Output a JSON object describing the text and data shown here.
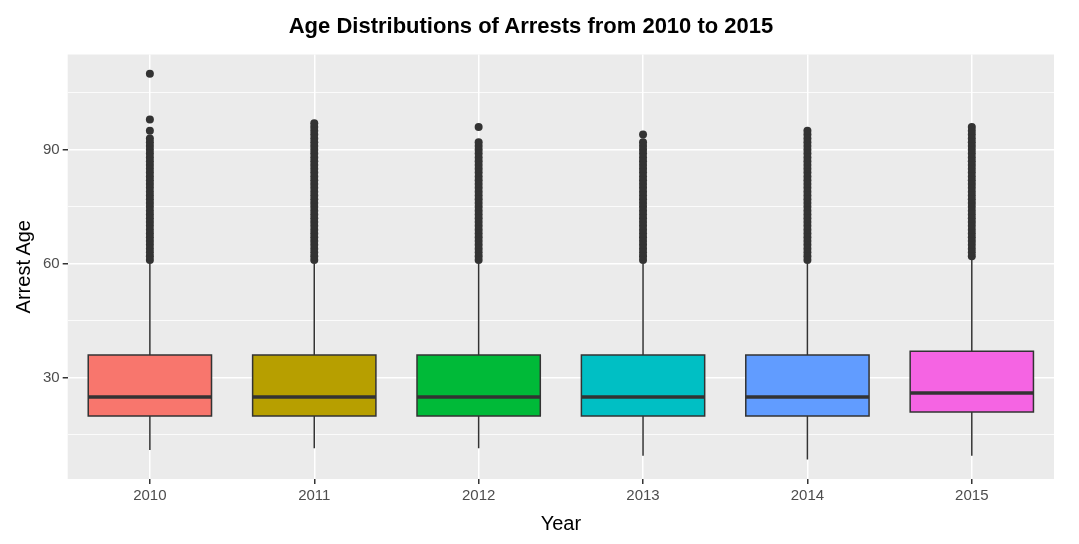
{
  "chart_data": {
    "type": "box",
    "title": "Age Distributions of Arrests from 2010 to 2015",
    "xlabel": "Year",
    "ylabel": "Arrest Age",
    "categories": [
      "2010",
      "2011",
      "2012",
      "2013",
      "2014",
      "2015"
    ],
    "colors": [
      "#f8766d",
      "#b79f00",
      "#00ba38",
      "#00bfc4",
      "#619cff",
      "#f564e3"
    ],
    "boxes": [
      {
        "low": 11,
        "q1": 20,
        "median": 25,
        "q3": 36,
        "high": 60,
        "outliers": [
          61,
          62,
          63,
          64,
          65,
          66,
          67,
          68,
          69,
          70,
          71,
          72,
          73,
          74,
          75,
          76,
          77,
          78,
          79,
          80,
          81,
          82,
          83,
          84,
          85,
          86,
          87,
          88,
          89,
          90,
          91,
          92,
          93,
          95,
          98,
          110
        ]
      },
      {
        "low": 11.5,
        "q1": 20,
        "median": 25,
        "q3": 36,
        "high": 60,
        "outliers": [
          61,
          62,
          63,
          64,
          65,
          66,
          67,
          68,
          69,
          70,
          71,
          72,
          73,
          74,
          75,
          76,
          77,
          78,
          79,
          80,
          81,
          82,
          83,
          84,
          85,
          86,
          87,
          88,
          89,
          90,
          91,
          92,
          93,
          94,
          95,
          96,
          97
        ]
      },
      {
        "low": 11.5,
        "q1": 20,
        "median": 25,
        "q3": 36,
        "high": 60,
        "outliers": [
          61,
          62,
          63,
          64,
          65,
          66,
          67,
          68,
          69,
          70,
          71,
          72,
          73,
          74,
          75,
          76,
          77,
          78,
          79,
          80,
          81,
          82,
          83,
          84,
          85,
          86,
          87,
          88,
          89,
          90,
          91,
          92,
          96
        ]
      },
      {
        "low": 9.5,
        "q1": 20,
        "median": 25,
        "q3": 36,
        "high": 60,
        "outliers": [
          61,
          62,
          63,
          64,
          65,
          66,
          67,
          68,
          69,
          70,
          71,
          72,
          73,
          74,
          75,
          76,
          77,
          78,
          79,
          80,
          81,
          82,
          83,
          84,
          85,
          86,
          87,
          88,
          89,
          90,
          91,
          92,
          94
        ]
      },
      {
        "low": 8.5,
        "q1": 20,
        "median": 25,
        "q3": 36,
        "high": 60,
        "outliers": [
          61,
          62,
          63,
          64,
          65,
          66,
          67,
          68,
          69,
          70,
          71,
          72,
          73,
          74,
          75,
          76,
          77,
          78,
          79,
          80,
          81,
          82,
          83,
          84,
          85,
          86,
          87,
          88,
          89,
          90,
          91,
          92,
          93,
          94,
          95
        ]
      },
      {
        "low": 9.5,
        "q1": 21,
        "median": 26,
        "q3": 37,
        "high": 61,
        "outliers": [
          62,
          63,
          64,
          65,
          66,
          67,
          68,
          69,
          70,
          71,
          72,
          73,
          74,
          75,
          76,
          77,
          78,
          79,
          80,
          81,
          82,
          83,
          84,
          85,
          86,
          87,
          88,
          89,
          90,
          91,
          92,
          93,
          94,
          95,
          96
        ]
      }
    ],
    "ylim": [
      3.4,
      115.1
    ],
    "yticks": [
      {
        "value": 15,
        "label": null
      },
      30,
      {
        "value": 45,
        "label": null
      },
      60,
      {
        "value": 75,
        "label": null
      },
      90,
      {
        "value": 105,
        "label": null
      }
    ],
    "grid": true,
    "legend": false
  }
}
